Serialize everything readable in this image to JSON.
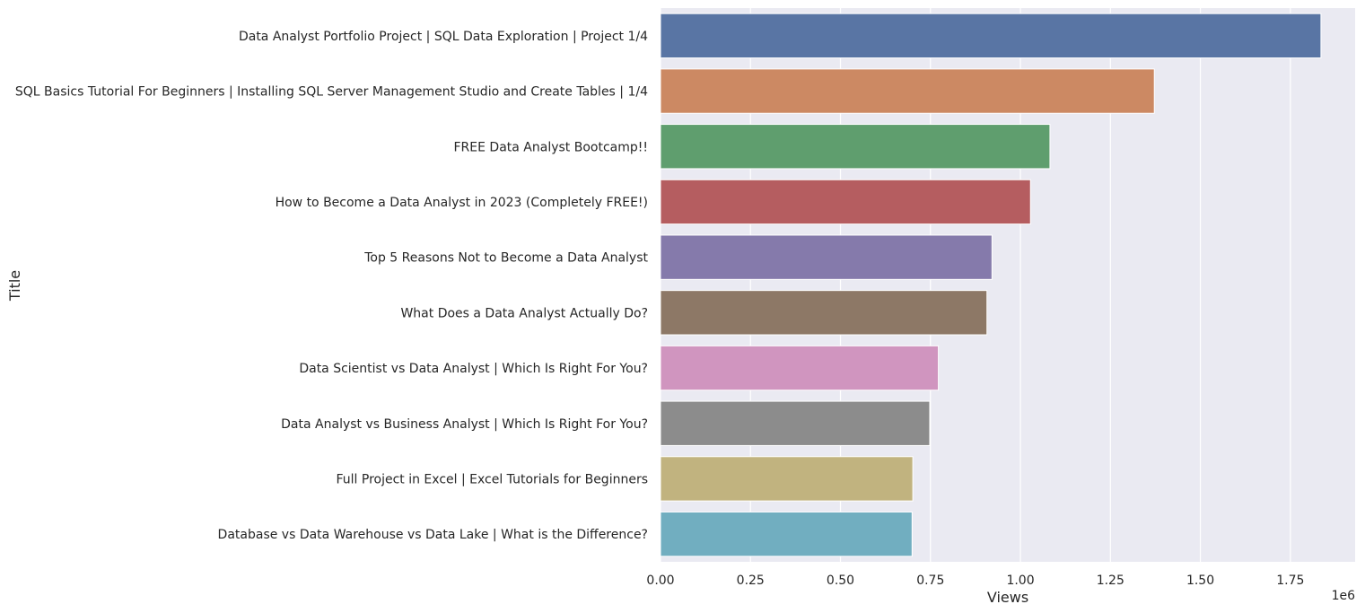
{
  "chart_data": {
    "type": "bar",
    "orientation": "horizontal",
    "xlabel": "Views",
    "ylabel": "Title",
    "x_offset_label": "1e6",
    "xlim": [
      0,
      1930000
    ],
    "xticks": [
      0,
      250000,
      500000,
      750000,
      1000000,
      1250000,
      1500000,
      1750000
    ],
    "xtick_labels": [
      "0.00",
      "0.25",
      "0.50",
      "0.75",
      "1.00",
      "1.25",
      "1.50",
      "1.75"
    ],
    "grid": true,
    "background": "#eaeaf2",
    "categories": [
      "Data Analyst Portfolio Project | SQL Data Exploration | Project 1/4",
      "SQL Basics Tutorial For Beginners | Installing SQL Server Management Studio and Create Tables | 1/4",
      "FREE Data Analyst Bootcamp!!",
      "How to Become a Data Analyst in 2023 (Completely FREE!)",
      "Top 5 Reasons Not to Become a Data Analyst",
      "What Does a Data Analyst Actually Do?",
      "Data Scientist vs Data Analyst | Which Is Right For You?",
      "Data Analyst vs Business Analyst | Which Is Right For You?",
      "Full Project in Excel | Excel Tutorials for Beginners",
      "Database vs Data Warehouse vs Data Lake | What is the Difference?"
    ],
    "values": [
      1835000,
      1372000,
      1082000,
      1028000,
      921000,
      907000,
      772000,
      748000,
      701000,
      699000
    ],
    "colors": [
      "#5975a4",
      "#cc8963",
      "#5f9e6e",
      "#b55d60",
      "#857aab",
      "#8d7866",
      "#d095bf",
      "#8c8c8c",
      "#c1b37f",
      "#71aec0"
    ]
  }
}
